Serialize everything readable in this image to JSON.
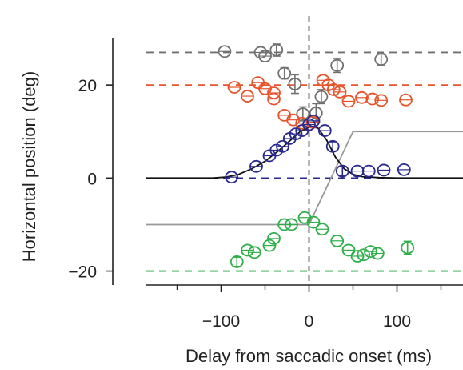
{
  "chart_data": {
    "type": "scatter",
    "title": "",
    "xlabel": "Delay from saccadic onset (ms)",
    "ylabel": "Horizontal position (deg)",
    "xlim": [
      -185,
      175
    ],
    "ylim": [
      -23,
      30
    ],
    "x_ticks": [
      -100,
      0,
      100
    ],
    "x_tick_labels": [
      "−100",
      "0",
      "100"
    ],
    "x_minor_ticks": [
      -150,
      -50,
      50,
      150
    ],
    "y_ticks": [
      -20,
      0,
      20
    ],
    "y_tick_labels": [
      "−20",
      "0",
      "20"
    ],
    "grid": false,
    "legend": "none",
    "reference_lines": [
      {
        "kind": "horizontal",
        "y": 27,
        "style": "dashed",
        "color": "#707070"
      },
      {
        "kind": "horizontal",
        "y": 20,
        "style": "dashed",
        "color": "#e8532b"
      },
      {
        "kind": "horizontal",
        "y": 0,
        "style": "dashed",
        "color": "#2a2a8f"
      },
      {
        "kind": "horizontal",
        "y": -20,
        "style": "dashed",
        "color": "#2fae4a"
      },
      {
        "kind": "vertical",
        "x": 0,
        "style": "dashed",
        "color": "#111111"
      }
    ],
    "curves": [
      {
        "style": "solid",
        "color": "#999999",
        "points": [
          [
            -185,
            -10
          ],
          [
            0,
            -10
          ],
          [
            50,
            10
          ],
          [
            175,
            10
          ]
        ]
      },
      {
        "style": "solid",
        "color": "#111111",
        "points": [
          [
            -185,
            0
          ],
          [
            -110,
            0
          ],
          [
            -95,
            0.2
          ],
          [
            -80,
            0.8
          ],
          [
            -65,
            2
          ],
          [
            -50,
            3.6
          ],
          [
            -35,
            5.8
          ],
          [
            -20,
            8.3
          ],
          [
            -10,
            10
          ],
          [
            0,
            11
          ],
          [
            10,
            10.8
          ],
          [
            20,
            8.2
          ],
          [
            30,
            4.5
          ],
          [
            40,
            2
          ],
          [
            50,
            0.8
          ],
          [
            60,
            0.3
          ],
          [
            80,
            0.1
          ],
          [
            100,
            0
          ],
          [
            175,
            0
          ]
        ]
      }
    ],
    "series": [
      {
        "color": "#707070",
        "points": [
          {
            "x": -96,
            "y": 27.2,
            "err": 0
          },
          {
            "x": -55,
            "y": 27,
            "err": 0
          },
          {
            "x": -50,
            "y": 26.2,
            "err": 0
          },
          {
            "x": -37,
            "y": 27.5,
            "err": 1.3
          },
          {
            "x": -28,
            "y": 22.5,
            "err": 1.2
          },
          {
            "x": -16,
            "y": 20.2,
            "err": 2
          },
          {
            "x": -7,
            "y": 13.8,
            "err": 1.5
          },
          {
            "x": 8,
            "y": 14,
            "err": 2
          },
          {
            "x": 14,
            "y": 17.5,
            "err": 1.5
          },
          {
            "x": 32,
            "y": 24.2,
            "err": 1.5
          },
          {
            "x": 82,
            "y": 25.5,
            "err": 1.2
          }
        ]
      },
      {
        "color": "#e8532b",
        "points": [
          {
            "x": -85,
            "y": 19.5,
            "err": 0
          },
          {
            "x": -70,
            "y": 17.6,
            "err": 0
          },
          {
            "x": -58,
            "y": 20.5,
            "err": 0
          },
          {
            "x": -50,
            "y": 19.2,
            "err": 0
          },
          {
            "x": -40,
            "y": 18.3,
            "err": 0
          },
          {
            "x": -40,
            "y": 17,
            "err": 0
          },
          {
            "x": -28,
            "y": 13.5,
            "err": 0
          },
          {
            "x": -18,
            "y": 12.5,
            "err": 0
          },
          {
            "x": -8,
            "y": 11.8,
            "err": 0
          },
          {
            "x": 4,
            "y": 12,
            "err": 0
          },
          {
            "x": 16,
            "y": 21,
            "err": 0
          },
          {
            "x": 22,
            "y": 20,
            "err": 0
          },
          {
            "x": 28,
            "y": 19,
            "err": 0
          },
          {
            "x": 35,
            "y": 18.5,
            "err": 0
          },
          {
            "x": 45,
            "y": 16.5,
            "err": 0
          },
          {
            "x": 60,
            "y": 17.3,
            "err": 0
          },
          {
            "x": 72,
            "y": 17,
            "err": 0
          },
          {
            "x": 82,
            "y": 16.7,
            "err": 0
          },
          {
            "x": 110,
            "y": 16.8,
            "err": 0
          }
        ]
      },
      {
        "color": "#2a2a8f",
        "points": [
          {
            "x": -88,
            "y": 0.2,
            "err": 0
          },
          {
            "x": -60,
            "y": 2.5,
            "err": 0
          },
          {
            "x": -45,
            "y": 4.8,
            "err": 0
          },
          {
            "x": -37,
            "y": 6,
            "err": 0
          },
          {
            "x": -30,
            "y": 6.8,
            "err": 0
          },
          {
            "x": -22,
            "y": 8.5,
            "err": 0
          },
          {
            "x": -15,
            "y": 9.5,
            "err": 0
          },
          {
            "x": -8,
            "y": 10.2,
            "err": 0
          },
          {
            "x": 0,
            "y": 11.5,
            "err": 0
          },
          {
            "x": 5,
            "y": 12.3,
            "err": 0
          },
          {
            "x": 18,
            "y": 10.2,
            "err": 0
          },
          {
            "x": 27,
            "y": 6.8,
            "err": 1
          },
          {
            "x": 38,
            "y": 1.5,
            "err": 1
          },
          {
            "x": 55,
            "y": 1.5,
            "err": 0
          },
          {
            "x": 68,
            "y": 1.5,
            "err": 0
          },
          {
            "x": 85,
            "y": 1.7,
            "err": 0
          },
          {
            "x": 108,
            "y": 1.8,
            "err": 0
          }
        ]
      },
      {
        "color": "#2fae4a",
        "points": [
          {
            "x": -82,
            "y": -18,
            "err": 1
          },
          {
            "x": -70,
            "y": -15.5,
            "err": 0
          },
          {
            "x": -62,
            "y": -16,
            "err": 0
          },
          {
            "x": -45,
            "y": -14.5,
            "err": 0
          },
          {
            "x": -40,
            "y": -13,
            "err": 0
          },
          {
            "x": -28,
            "y": -10,
            "err": 0
          },
          {
            "x": -20,
            "y": -10,
            "err": 0
          },
          {
            "x": -5,
            "y": -8.5,
            "err": 0
          },
          {
            "x": 5,
            "y": -9.5,
            "err": 0
          },
          {
            "x": 15,
            "y": -11,
            "err": 0
          },
          {
            "x": 32,
            "y": -13.5,
            "err": 0
          },
          {
            "x": 45,
            "y": -15.5,
            "err": 0
          },
          {
            "x": 55,
            "y": -16.8,
            "err": 0
          },
          {
            "x": 62,
            "y": -16.5,
            "err": 0
          },
          {
            "x": 70,
            "y": -15.8,
            "err": 0
          },
          {
            "x": 78,
            "y": -16.2,
            "err": 0
          },
          {
            "x": 112,
            "y": -15,
            "err": 1.4
          }
        ]
      }
    ]
  }
}
